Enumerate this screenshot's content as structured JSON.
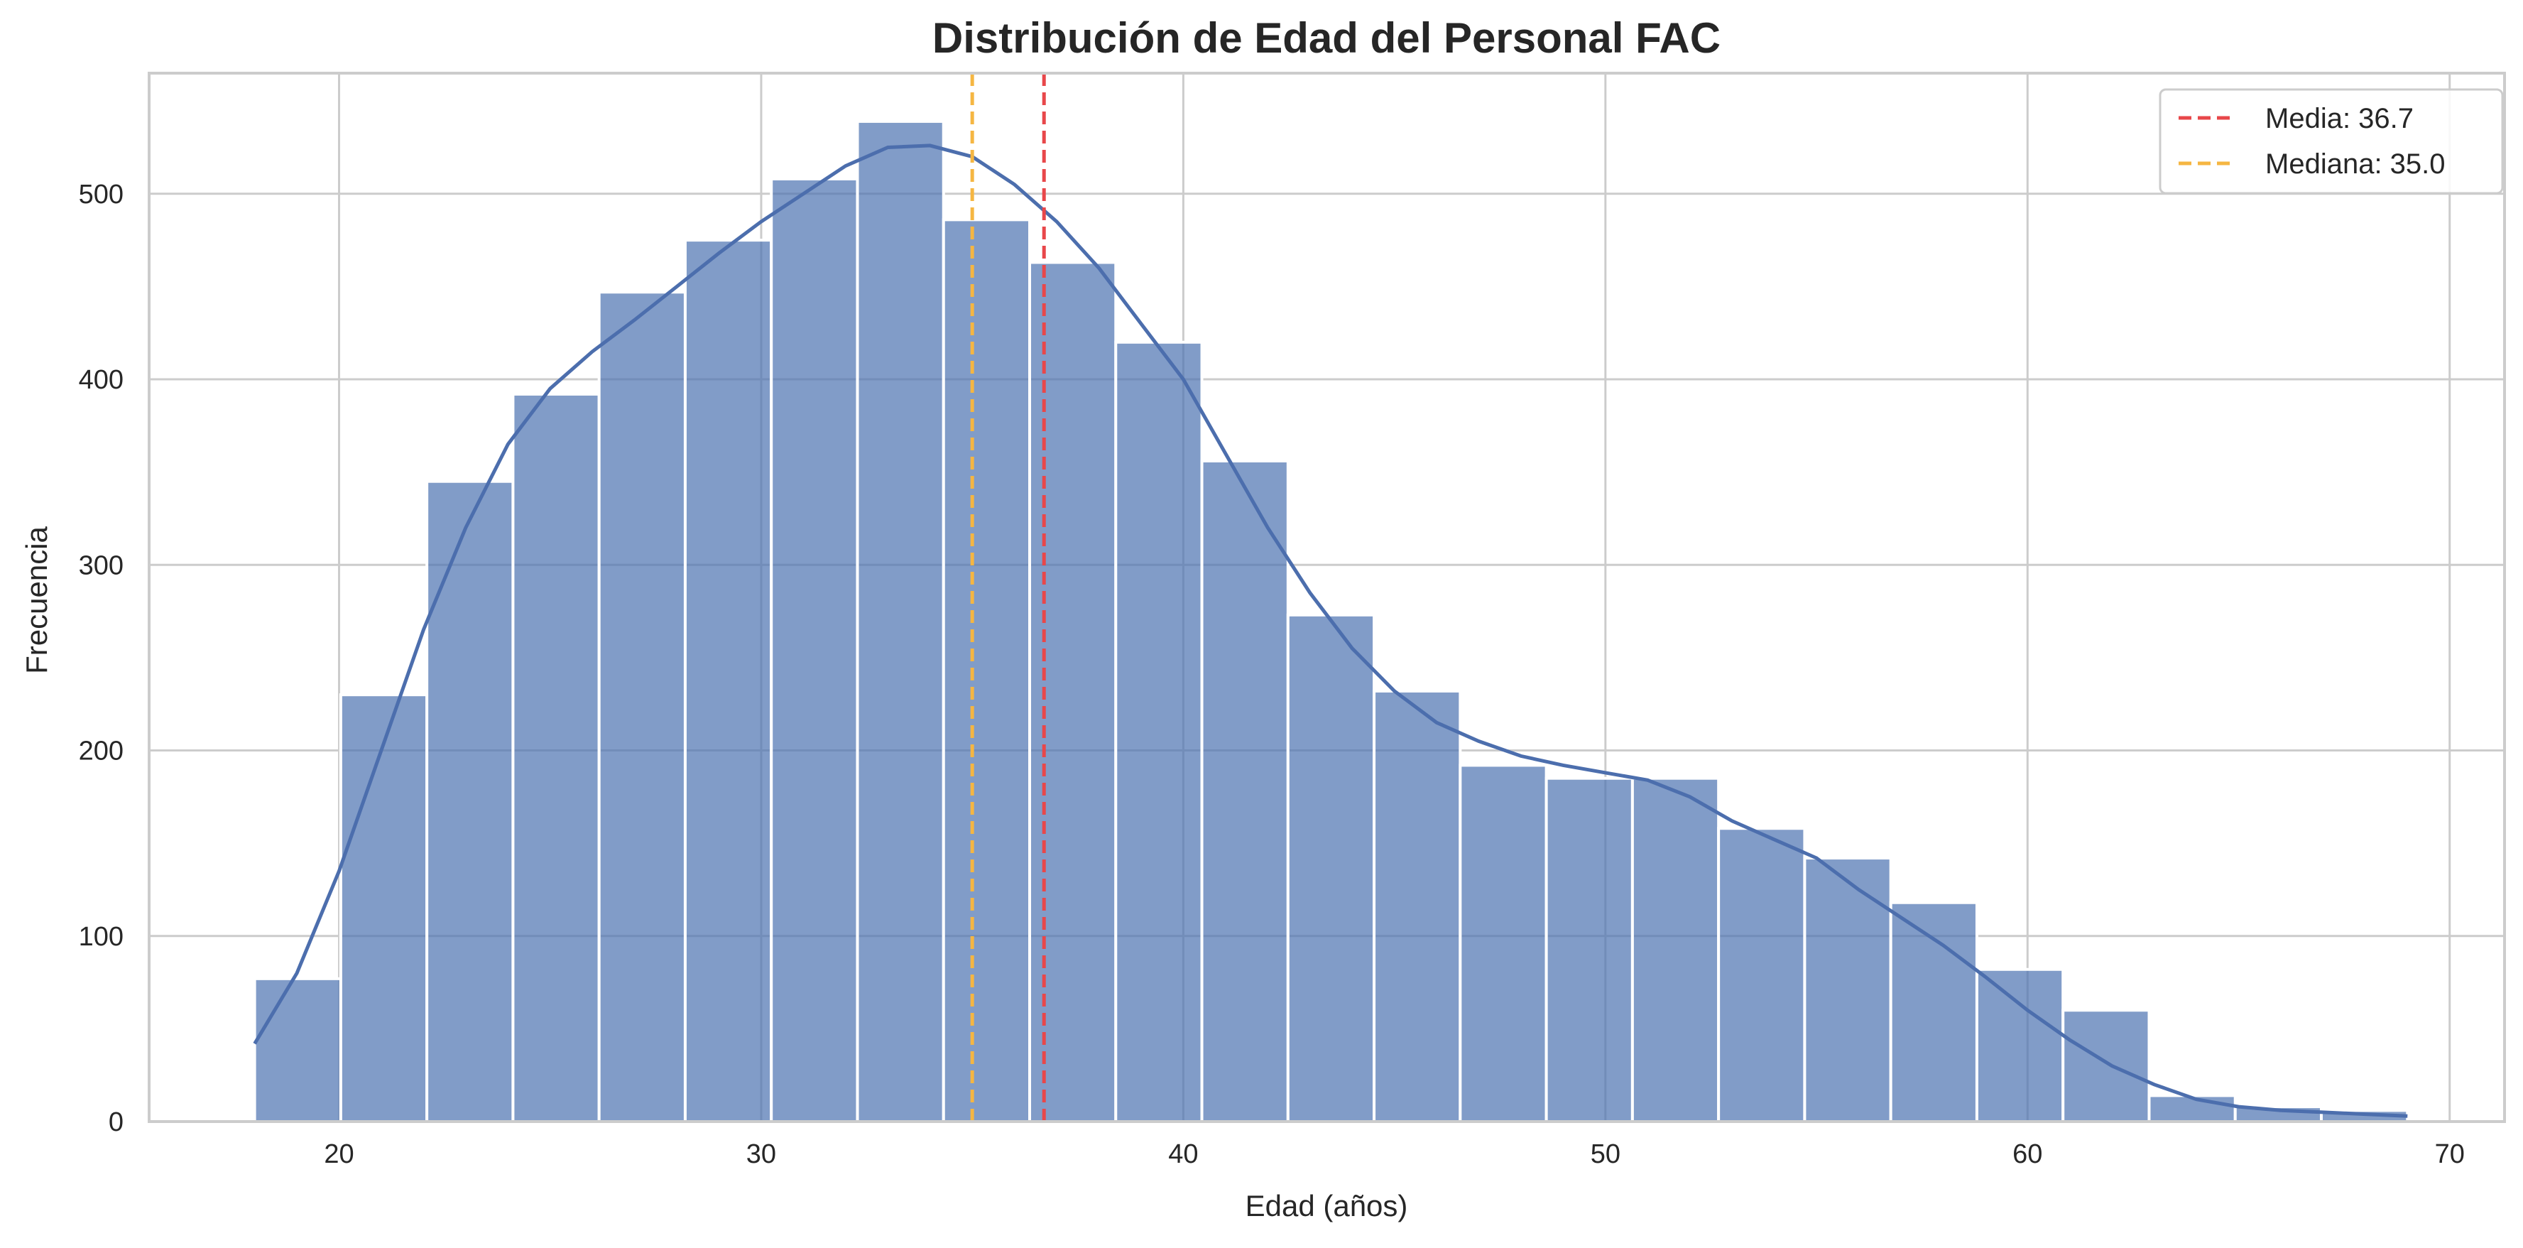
{
  "chart_data": {
    "type": "bar",
    "title": "Distribución de Edad del Personal FAC",
    "xlabel": "Edad (años)",
    "ylabel": "Frecuencia",
    "xlim": [
      15.5,
      71.3
    ],
    "ylim": [
      0,
      565
    ],
    "xticks": [
      20,
      30,
      40,
      50,
      60,
      70
    ],
    "yticks": [
      0,
      100,
      200,
      300,
      400,
      500
    ],
    "grid": true,
    "legend_position": "top-right",
    "bin_start": 18,
    "bin_width": 2.04,
    "counts": [
      77,
      230,
      345,
      392,
      447,
      475,
      508,
      539,
      486,
      463,
      420,
      356,
      273,
      232,
      192,
      185,
      185,
      158,
      142,
      118,
      82,
      60,
      14,
      8,
      6
    ],
    "kde": {
      "x": [
        18,
        19,
        20,
        21,
        22,
        23,
        24,
        25,
        26,
        27,
        28,
        29,
        30,
        31,
        32,
        33,
        34,
        35,
        36,
        37,
        38,
        39,
        40,
        41,
        42,
        43,
        44,
        45,
        46,
        47,
        48,
        49,
        50,
        51,
        52,
        53,
        54,
        55,
        56,
        57,
        58,
        59,
        60,
        61,
        62,
        63,
        64,
        65,
        66,
        67,
        68,
        69
      ],
      "y": [
        42,
        80,
        135,
        200,
        265,
        320,
        365,
        395,
        415,
        432,
        450,
        468,
        485,
        500,
        515,
        525,
        526,
        520,
        505,
        485,
        460,
        430,
        400,
        360,
        320,
        285,
        255,
        232,
        215,
        205,
        197,
        192,
        188,
        184,
        175,
        162,
        152,
        142,
        125,
        110,
        95,
        78,
        60,
        44,
        30,
        20,
        12,
        8,
        6,
        5,
        4,
        3
      ]
    },
    "reference_lines": [
      {
        "name": "Media: 36.7",
        "x": 36.7,
        "color": "#e8474a",
        "style": "dashed"
      },
      {
        "name": "Mediana: 35.0",
        "x": 35.0,
        "color": "#f5b642",
        "style": "dashed"
      }
    ],
    "colors": {
      "bar": "#4c72b0",
      "kde": "#4c6ead",
      "grid": "#cccccc",
      "axis_frame": "#cccccc"
    }
  }
}
